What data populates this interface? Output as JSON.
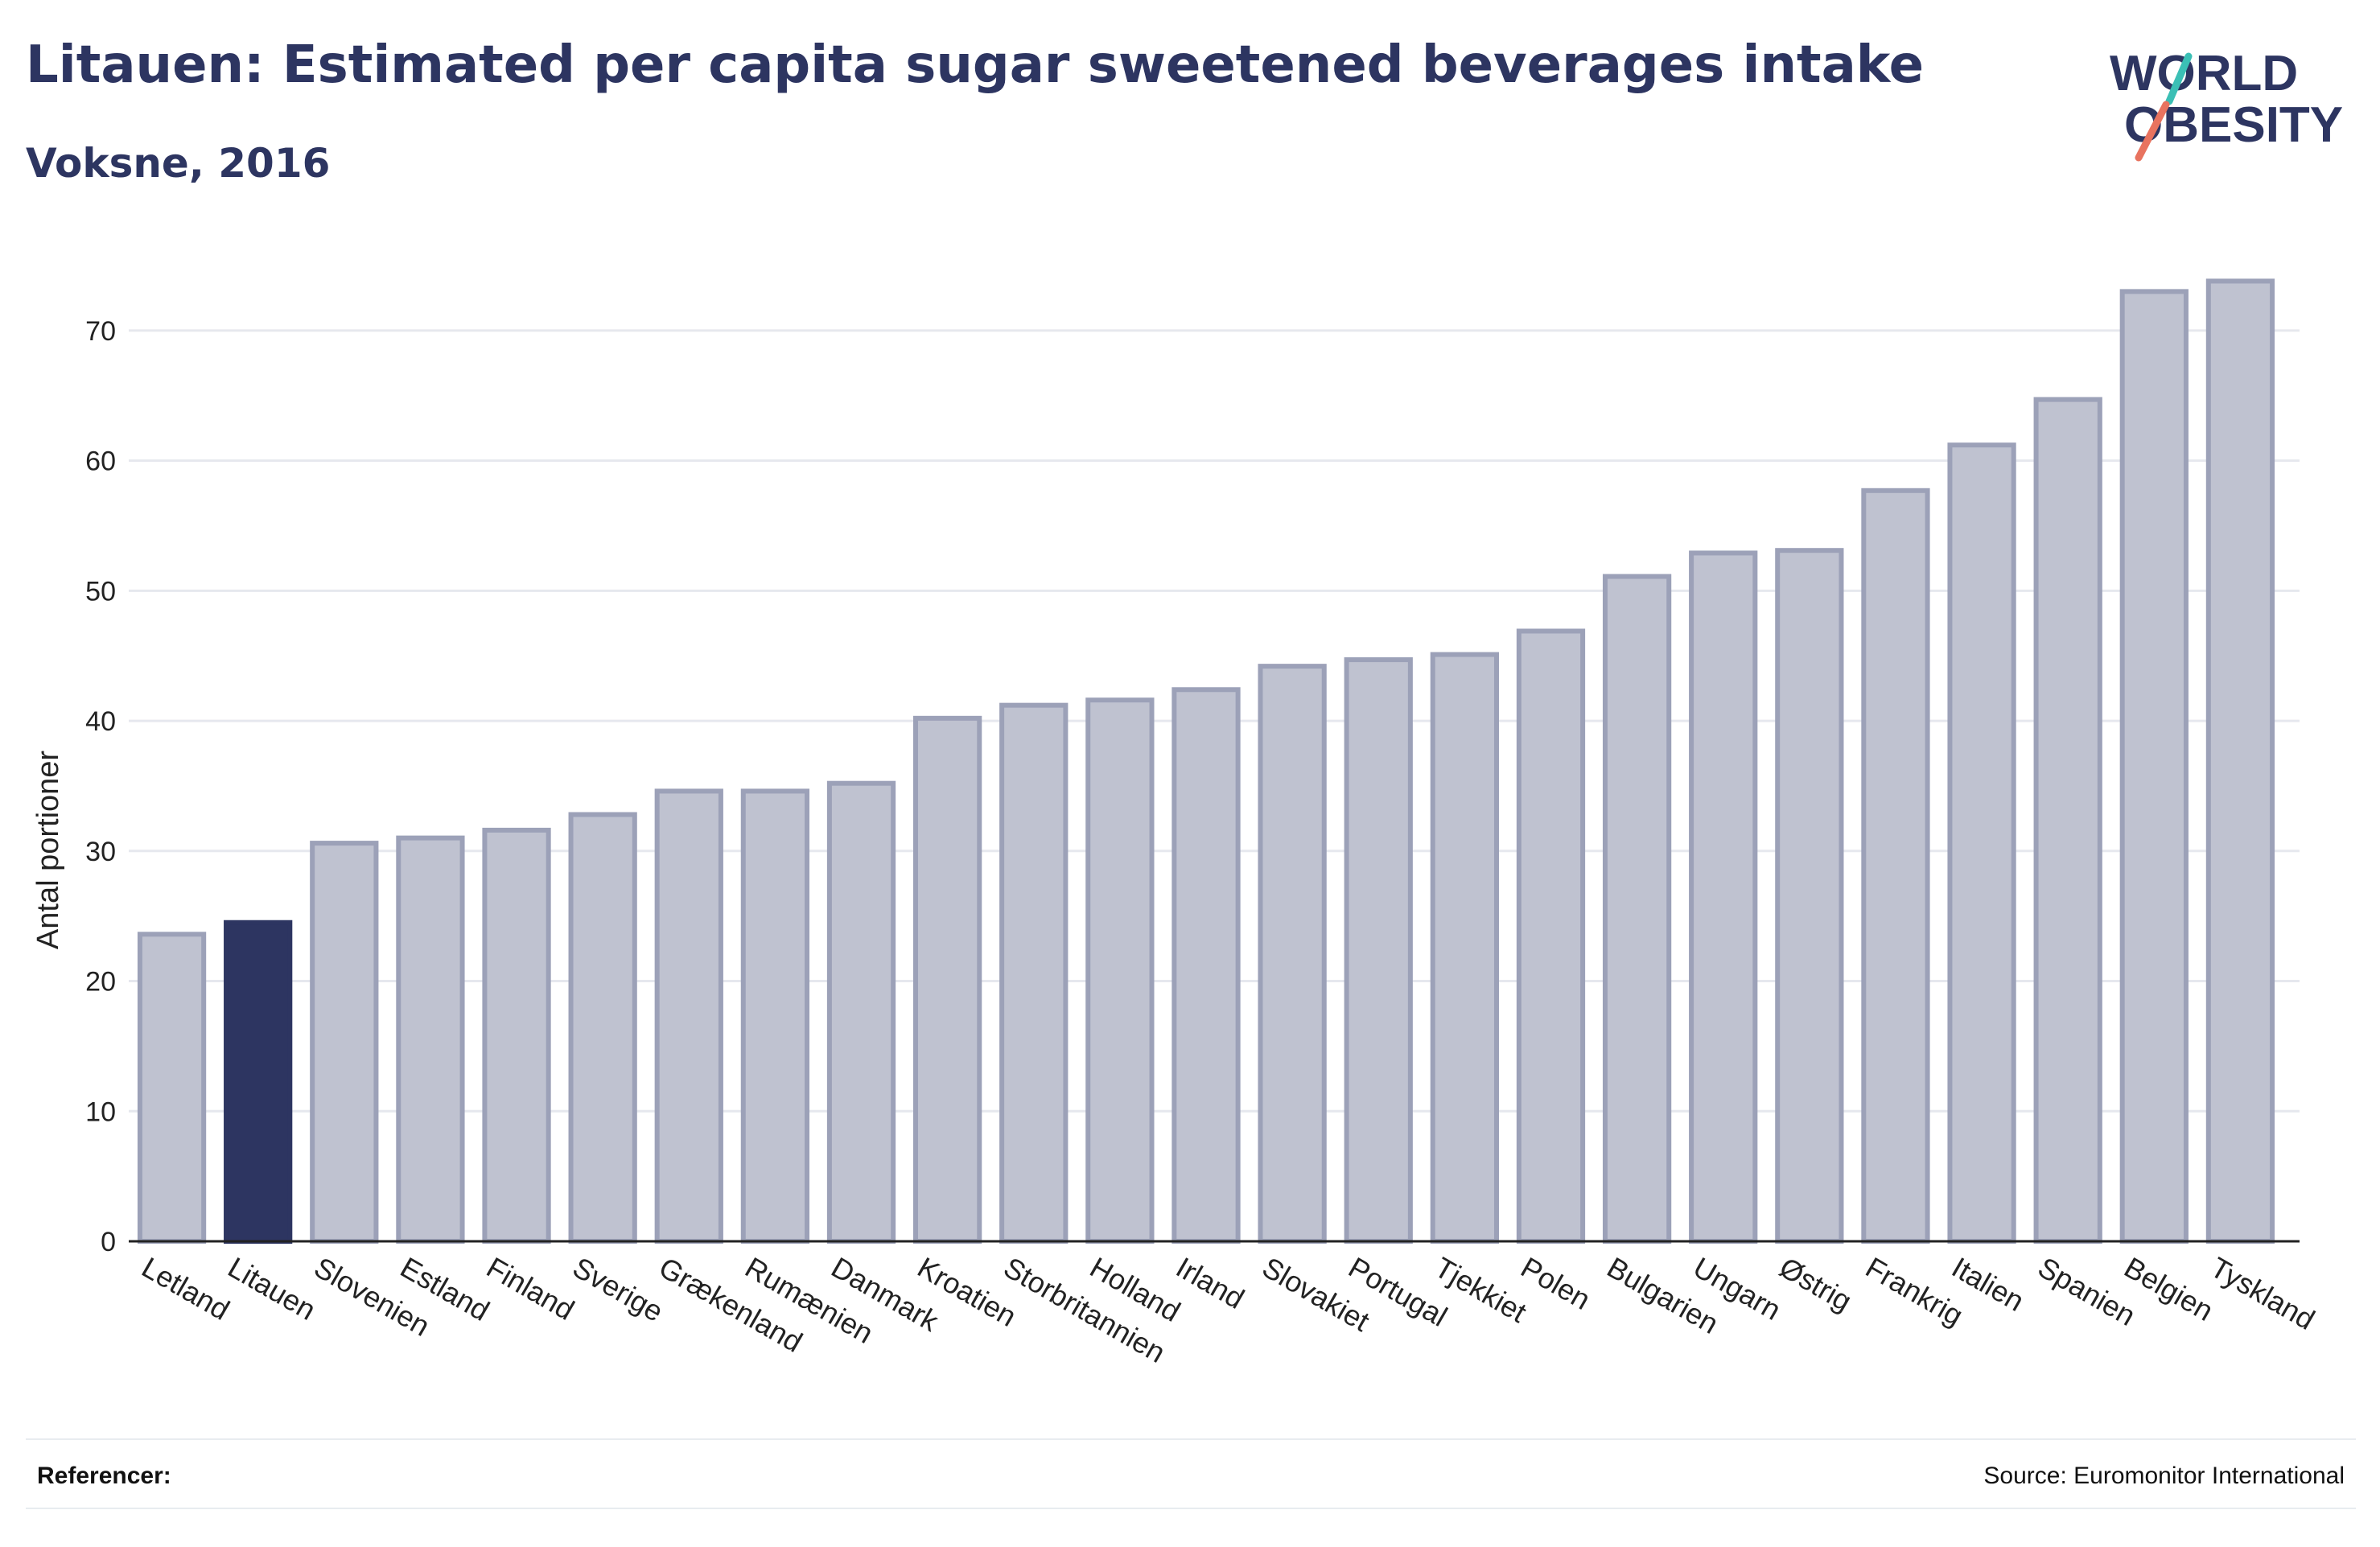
{
  "header": {
    "title": "Litauen: Estimated per capita sugar sweetened beverages intake",
    "subtitle": "Voksne, 2016"
  },
  "logo": {
    "line1": "WORLD",
    "line2": "OBESITY",
    "accent_teal": "#3bbfb5",
    "accent_coral": "#e8735f",
    "text_color": "#2d3561"
  },
  "footer": {
    "references_label": "Referencer:",
    "source": "Source: Euromonitor International"
  },
  "colors": {
    "bar": "#bfc2d0",
    "bar_stroke": "#9ca1b8",
    "highlight": "#2d3561",
    "grid": "#e6e8ee"
  },
  "chart_data": {
    "type": "bar",
    "title": "Litauen: Estimated per capita sugar sweetened beverages intake",
    "subtitle": "Voksne, 2016",
    "xlabel": "",
    "ylabel": "Antal portioner",
    "ylim": [
      0,
      75
    ],
    "yticks": [
      0,
      10,
      20,
      30,
      40,
      50,
      60,
      70
    ],
    "grid": true,
    "highlight": "Litauen",
    "categories": [
      "Letland",
      "Litauen",
      "Slovenien",
      "Estland",
      "Finland",
      "Sverige",
      "Grækenland",
      "Rumænien",
      "Danmark",
      "Kroatien",
      "Storbritannien",
      "Holland",
      "Irland",
      "Slovakiet",
      "Portugal",
      "Tjekkiet",
      "Polen",
      "Bulgarien",
      "Ungarn",
      "Østrig",
      "Frankrig",
      "Italien",
      "Spanien",
      "Belgien",
      "Tyskland"
    ],
    "values": [
      23.6,
      24.5,
      30.6,
      31.0,
      31.6,
      32.8,
      34.6,
      34.6,
      35.2,
      40.2,
      41.2,
      41.6,
      42.4,
      44.2,
      44.7,
      45.1,
      46.9,
      51.1,
      52.9,
      53.1,
      57.7,
      61.2,
      64.7,
      73.0,
      73.8
    ]
  }
}
